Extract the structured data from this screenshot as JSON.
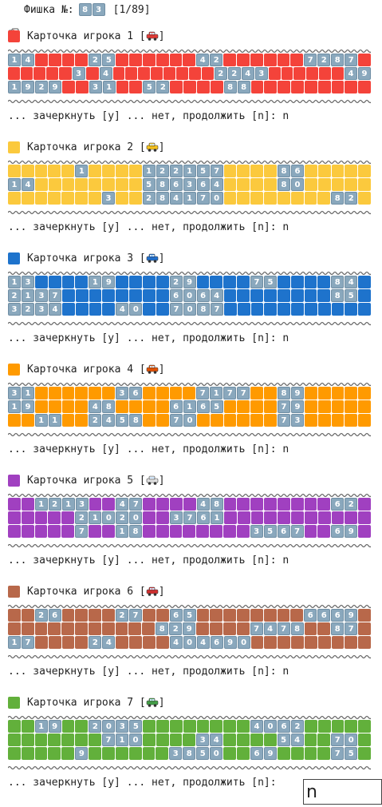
{
  "header": {
    "icon": "die-icon",
    "label": "Фишка №:",
    "number_digits": [
      "8",
      "3"
    ],
    "counter": "[1/89]"
  },
  "prompt_text": "... зачеркнуть [y] ... нет, продолжить [n]: n",
  "prompt_last": "... зачеркнуть [y] ... нет, продолжить [n]: ",
  "answer_value": "n",
  "cards": [
    {
      "title": "Карточка игрока 1",
      "color": "#f4433a",
      "vehicle": "red-car-icon",
      "rows": [
        [
          null,
          null,
          null,
          null,
          null,
          null,
          null,
          null,
          null,
          null,
          null,
          null,
          null,
          null,
          null,
          null,
          null,
          null,
          null,
          null,
          null,
          null,
          null,
          null,
          null
        ],
        []
      ]
    },
    {
      "title": "Карточка игрока 2",
      "color": "#fbc93d",
      "vehicle": "taxi-icon",
      "rows": []
    },
    {
      "title": "Карточка игрока 3",
      "color": "#1e73cc",
      "vehicle": "blue-car-icon",
      "rows": []
    },
    {
      "title": "Карточка игрока 4",
      "color": "#ff9a00",
      "vehicle": "truck-icon",
      "rows": []
    },
    {
      "title": "Карточка игрока 5",
      "color": "#a040c0",
      "vehicle": "ambulance-icon",
      "rows": []
    },
    {
      "title": "Карточка игрока 6",
      "color": "#b8684a",
      "vehicle": "fire-truck-icon",
      "rows": []
    },
    {
      "title": "Карточка игрока 7",
      "color": "#62b03b",
      "vehicle": "tractor-icon",
      "rows": []
    }
  ],
  "grids": [
    [
      [
        [
          0,
          "14"
        ],
        [
          3,
          "25"
        ],
        [
          7,
          "42"
        ],
        [
          11,
          "72"
        ],
        [
          12,
          "87"
        ]
      ],
      [
        [
          2,
          "3"
        ],
        [
          3,
          "4"
        ],
        [
          8,
          "22"
        ],
        [
          9,
          "43"
        ],
        [
          13,
          "49"
        ]
      ],
      [
        [
          0,
          "19"
        ],
        [
          1,
          "29"
        ],
        [
          3,
          "31"
        ],
        [
          5,
          "52"
        ],
        [
          8,
          "88"
        ]
      ]
    ],
    [
      [
        [
          2,
          "1"
        ],
        [
          5,
          "12"
        ],
        [
          6,
          "21"
        ],
        [
          7,
          "57"
        ],
        [
          10,
          "86"
        ]
      ],
      [
        [
          0,
          "14"
        ],
        [
          5,
          "58"
        ],
        [
          6,
          "63"
        ],
        [
          7,
          "64"
        ],
        [
          10,
          "80"
        ]
      ],
      [
        [
          3,
          "3"
        ],
        [
          5,
          "28"
        ],
        [
          6,
          "41"
        ],
        [
          7,
          "70"
        ],
        [
          12,
          "82"
        ]
      ]
    ],
    [
      [
        [
          0,
          "13"
        ],
        [
          3,
          "19"
        ],
        [
          6,
          "29"
        ],
        [
          9,
          "75"
        ],
        [
          12,
          "84"
        ]
      ],
      [
        [
          0,
          "21"
        ],
        [
          1,
          "37"
        ],
        [
          6,
          "60"
        ],
        [
          7,
          "64"
        ],
        [
          12,
          "85"
        ]
      ],
      [
        [
          0,
          "32"
        ],
        [
          1,
          "34"
        ],
        [
          4,
          "40"
        ],
        [
          6,
          "70"
        ],
        [
          7,
          "87"
        ]
      ]
    ],
    [
      [
        [
          0,
          "31"
        ],
        [
          4,
          "36"
        ],
        [
          7,
          "71"
        ],
        [
          8,
          "77"
        ],
        [
          10,
          "89"
        ]
      ],
      [
        [
          0,
          "19"
        ],
        [
          3,
          "48"
        ],
        [
          6,
          "61"
        ],
        [
          7,
          "65"
        ],
        [
          10,
          "79"
        ]
      ],
      [
        [
          1,
          "11"
        ],
        [
          3,
          "24"
        ],
        [
          4,
          "58"
        ],
        [
          6,
          "70"
        ],
        [
          10,
          "73"
        ]
      ]
    ],
    [
      [
        [
          1,
          "12"
        ],
        [
          2,
          "13"
        ],
        [
          4,
          "47"
        ],
        [
          7,
          "48"
        ],
        [
          12,
          "62"
        ]
      ],
      [
        [
          2,
          "2"
        ],
        [
          3,
          "10"
        ],
        [
          4,
          "20"
        ],
        [
          6,
          "37"
        ],
        [
          7,
          "61"
        ]
      ],
      [
        [
          2,
          "7"
        ],
        [
          4,
          "18"
        ],
        [
          9,
          "35"
        ],
        [
          10,
          "67"
        ],
        [
          12,
          "69"
        ]
      ]
    ],
    [
      [
        [
          1,
          "26"
        ],
        [
          4,
          "27"
        ],
        [
          6,
          "65"
        ],
        [
          11,
          "66"
        ],
        [
          12,
          "69"
        ]
      ],
      [
        [
          5,
          "8"
        ],
        [
          6,
          "29"
        ],
        [
          9,
          "74"
        ],
        [
          10,
          "78"
        ],
        [
          12,
          "87"
        ]
      ],
      [
        [
          0,
          "17"
        ],
        [
          3,
          "24"
        ],
        [
          6,
          "40"
        ],
        [
          7,
          "46"
        ],
        [
          8,
          "90"
        ]
      ]
    ],
    [
      [
        [
          1,
          "19"
        ],
        [
          3,
          "20"
        ],
        [
          4,
          "35"
        ],
        [
          9,
          "40"
        ],
        [
          10,
          "62"
        ]
      ],
      [
        [
          3,
          "7"
        ],
        [
          4,
          "10"
        ],
        [
          7,
          "34"
        ],
        [
          10,
          "54"
        ],
        [
          12,
          "70"
        ]
      ],
      [
        [
          2,
          "9"
        ],
        [
          6,
          "38"
        ],
        [
          7,
          "50"
        ],
        [
          9,
          "69"
        ],
        [
          12,
          "75"
        ]
      ]
    ]
  ]
}
